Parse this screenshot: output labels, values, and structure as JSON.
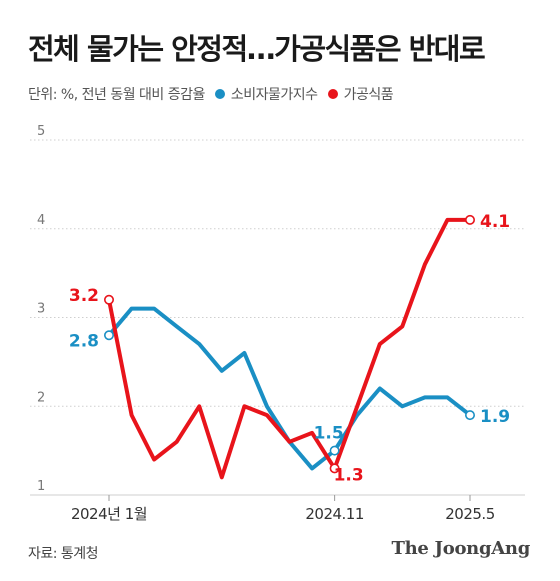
{
  "header": {
    "title": "전체 물가는 안정적…가공식품은 반대로",
    "unit_note": "단위: %, 전년 동월 대비 증감율"
  },
  "legend": [
    {
      "label": "소비자물가지수",
      "color": "#1a8fc4"
    },
    {
      "label": "가공식품",
      "color": "#e8141b"
    }
  ],
  "footer": {
    "source": "자료: 통계청",
    "brand": "The JoongAng"
  },
  "chart_data": {
    "type": "line",
    "ylim": [
      1,
      5
    ],
    "yticks": [
      "1",
      "2",
      "3",
      "4",
      "5"
    ],
    "x_tick_labels": [
      {
        "label": "2024년 1월",
        "index": 0
      },
      {
        "label": "2024.11",
        "index": 10
      },
      {
        "label": "2025.5",
        "index": 16
      }
    ],
    "grid": true,
    "series": [
      {
        "name": "소비자물가지수",
        "color": "#1a8fc4",
        "values": [
          2.8,
          3.1,
          3.1,
          2.9,
          2.7,
          2.4,
          2.6,
          2.0,
          1.6,
          1.3,
          1.5,
          1.9,
          2.2,
          2.0,
          2.1,
          2.1,
          1.9
        ]
      },
      {
        "name": "가공식품",
        "color": "#e8141b",
        "values": [
          3.2,
          1.9,
          1.4,
          1.6,
          2.0,
          1.2,
          2.0,
          1.9,
          1.6,
          1.7,
          1.3,
          2.0,
          2.7,
          2.9,
          3.6,
          4.1,
          4.1
        ]
      }
    ],
    "annotations": [
      {
        "text": "3.2",
        "series": 1,
        "index": 0,
        "color": "#e8141b"
      },
      {
        "text": "2.8",
        "series": 0,
        "index": 0,
        "color": "#1a8fc4"
      },
      {
        "text": "1.5",
        "series": 0,
        "index": 10,
        "color": "#1a8fc4"
      },
      {
        "text": "1.3",
        "series": 1,
        "index": 10,
        "color": "#e8141b"
      },
      {
        "text": "4.1",
        "series": 1,
        "index": 16,
        "color": "#e8141b"
      },
      {
        "text": "1.9",
        "series": 0,
        "index": 16,
        "color": "#1a8fc4"
      }
    ]
  }
}
